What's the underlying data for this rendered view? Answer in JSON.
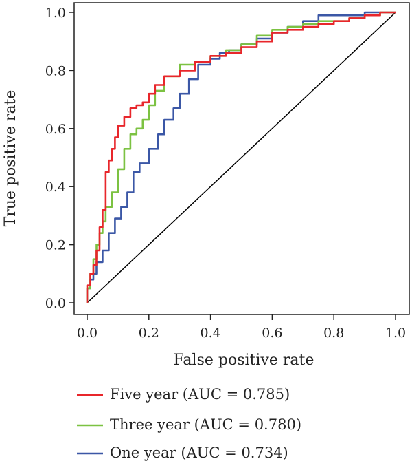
{
  "chart_data": {
    "type": "line",
    "xlabel": "False positive rate",
    "ylabel": "True positive rate",
    "xlim": [
      0.0,
      1.0
    ],
    "ylim": [
      0.0,
      1.0
    ],
    "x_ticks": [
      "0.0",
      "0.2",
      "0.4",
      "0.6",
      "0.8",
      "1.0"
    ],
    "y_ticks": [
      "0.0",
      "0.2",
      "0.4",
      "0.6",
      "0.8",
      "1.0"
    ],
    "grid": false,
    "legend_position": "bottom",
    "reference_line": {
      "x": [
        0,
        1
      ],
      "y": [
        0,
        1
      ],
      "color": "#000000"
    },
    "series": [
      {
        "name": "Five year (AUC = 0.785)",
        "color": "#e8262b",
        "x": [
          0.0,
          0.01,
          0.02,
          0.03,
          0.04,
          0.05,
          0.06,
          0.07,
          0.08,
          0.09,
          0.1,
          0.12,
          0.14,
          0.16,
          0.18,
          0.2,
          0.22,
          0.25,
          0.3,
          0.35,
          0.4,
          0.45,
          0.5,
          0.55,
          0.6,
          0.65,
          0.7,
          0.75,
          0.8,
          0.85,
          0.9,
          0.95,
          1.0
        ],
        "y": [
          0.0,
          0.06,
          0.1,
          0.13,
          0.18,
          0.26,
          0.32,
          0.45,
          0.49,
          0.53,
          0.57,
          0.61,
          0.64,
          0.67,
          0.68,
          0.69,
          0.72,
          0.75,
          0.78,
          0.8,
          0.83,
          0.85,
          0.86,
          0.88,
          0.9,
          0.93,
          0.94,
          0.95,
          0.96,
          0.97,
          0.98,
          0.99,
          1.0
        ]
      },
      {
        "name": "Three year (AUC = 0.780)",
        "color": "#7cc242",
        "x": [
          0.0,
          0.01,
          0.02,
          0.03,
          0.04,
          0.05,
          0.06,
          0.08,
          0.1,
          0.12,
          0.14,
          0.16,
          0.18,
          0.2,
          0.22,
          0.25,
          0.3,
          0.35,
          0.4,
          0.45,
          0.5,
          0.55,
          0.6,
          0.65,
          0.7,
          0.75,
          0.8,
          0.85,
          0.9,
          0.95,
          1.0
        ],
        "y": [
          0.0,
          0.05,
          0.1,
          0.15,
          0.2,
          0.24,
          0.28,
          0.33,
          0.38,
          0.46,
          0.53,
          0.58,
          0.6,
          0.63,
          0.68,
          0.73,
          0.78,
          0.82,
          0.83,
          0.85,
          0.87,
          0.89,
          0.92,
          0.94,
          0.95,
          0.96,
          0.97,
          0.97,
          0.98,
          0.99,
          1.0
        ]
      },
      {
        "name": "One year (AUC = 0.734)",
        "color": "#3b57a6",
        "x": [
          0.0,
          0.01,
          0.02,
          0.03,
          0.05,
          0.07,
          0.09,
          0.11,
          0.13,
          0.15,
          0.17,
          0.2,
          0.23,
          0.25,
          0.28,
          0.3,
          0.33,
          0.36,
          0.4,
          0.43,
          0.46,
          0.5,
          0.55,
          0.6,
          0.65,
          0.7,
          0.75,
          0.78,
          0.8,
          0.85,
          0.9,
          0.95,
          1.0
        ],
        "y": [
          0.0,
          0.05,
          0.08,
          0.1,
          0.14,
          0.18,
          0.24,
          0.29,
          0.33,
          0.38,
          0.45,
          0.48,
          0.53,
          0.58,
          0.63,
          0.67,
          0.72,
          0.77,
          0.82,
          0.84,
          0.86,
          0.87,
          0.89,
          0.91,
          0.93,
          0.95,
          0.97,
          0.99,
          0.99,
          0.99,
          0.99,
          1.0,
          1.0
        ]
      }
    ]
  }
}
